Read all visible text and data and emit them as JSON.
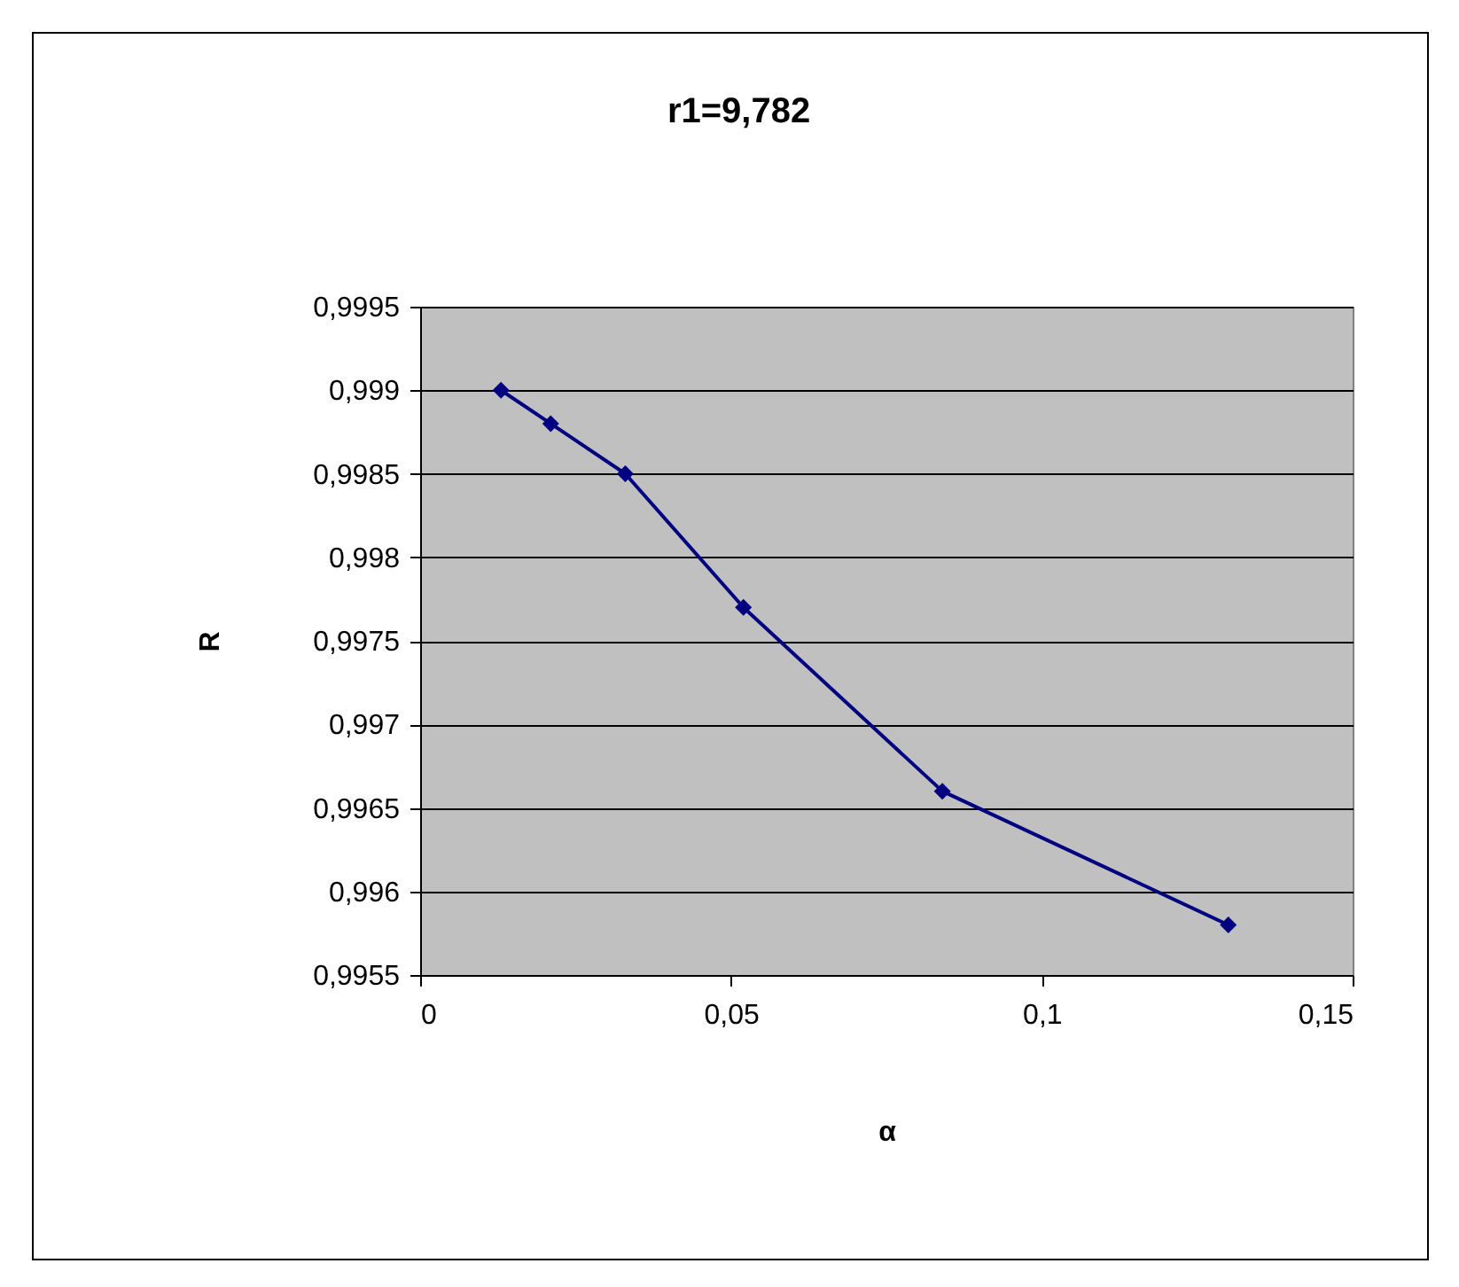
{
  "chart_data": {
    "type": "line",
    "title": "r1=9,782",
    "xlabel": "α",
    "ylabel": "R",
    "x": [
      0.013,
      0.021,
      0.033,
      0.052,
      0.084,
      0.13
    ],
    "series": [
      {
        "color": "#000080",
        "values": [
          0.999,
          0.9988,
          0.9985,
          0.9977,
          0.9966,
          0.9958
        ]
      }
    ],
    "xlim": [
      0,
      0.15
    ],
    "xticks": [
      0,
      {
        "value": 0.05,
        "label": "0,05"
      },
      {
        "value": 0.1,
        "label": "0,1"
      },
      {
        "value": 0.15,
        "label": "0,15"
      }
    ],
    "ylim": [
      0.9955,
      0.9995
    ],
    "yticks": [
      {
        "value": 0.9955,
        "label": "0,9955"
      },
      {
        "value": 0.996,
        "label": "0,996"
      },
      {
        "value": 0.9965,
        "label": "0,9965"
      },
      {
        "value": 0.997,
        "label": "0,997"
      },
      {
        "value": 0.9975,
        "label": "0,9975"
      },
      {
        "value": 0.998,
        "label": "0,998"
      },
      {
        "value": 0.9985,
        "label": "0,9985"
      },
      {
        "value": 0.999,
        "label": "0,999"
      },
      {
        "value": 0.9995,
        "label": "0,9995"
      }
    ],
    "grid": "y",
    "legend": false,
    "marker": "diamond",
    "line_style": "solid"
  }
}
